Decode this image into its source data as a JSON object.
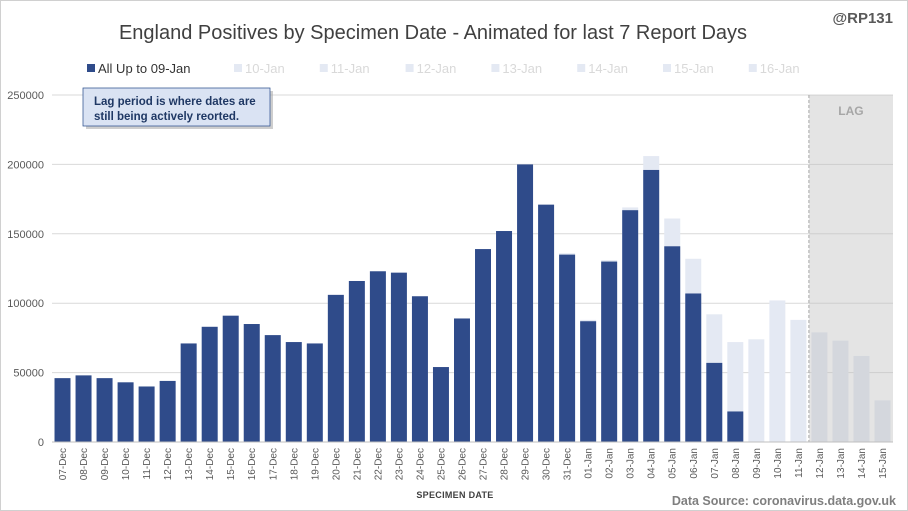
{
  "header": {
    "handle": "@RP131"
  },
  "legend": [
    {
      "label": "All Up to 09-Jan",
      "color": "#2F4B8A",
      "text_color": "#333333"
    },
    {
      "label": "10-Jan",
      "color": "#E4E9F3",
      "text_color": "#D9D9D9"
    },
    {
      "label": "11-Jan",
      "color": "#E4E9F3",
      "text_color": "#D9D9D9"
    },
    {
      "label": "12-Jan",
      "color": "#E4E9F3",
      "text_color": "#D9D9D9"
    },
    {
      "label": "13-Jan",
      "color": "#E4E9F3",
      "text_color": "#D9D9D9"
    },
    {
      "label": "14-Jan",
      "color": "#E4E9F3",
      "text_color": "#D9D9D9"
    },
    {
      "label": "15-Jan",
      "color": "#E4E9F3",
      "text_color": "#D9D9D9"
    },
    {
      "label": "16-Jan",
      "color": "#E4E9F3",
      "text_color": "#D9D9D9"
    }
  ],
  "annotation": {
    "lines": [
      "Lag period is where dates are",
      "still being actively reorted."
    ]
  },
  "footer": {
    "source": "Data Source: coronavirus.data.gov.uk"
  },
  "chart_data": {
    "type": "bar",
    "overlaid": true,
    "title": "England Positives by Specimen Date - Animated for last 7 Report Days",
    "xlabel": "SPECIMEN DATE",
    "ylim": [
      0,
      250000
    ],
    "yticks": [
      0,
      50000,
      100000,
      150000,
      200000,
      250000
    ],
    "grid": true,
    "legend_position": "top",
    "categories": [
      "07-Dec",
      "08-Dec",
      "09-Dec",
      "10-Dec",
      "11-Dec",
      "12-Dec",
      "13-Dec",
      "14-Dec",
      "15-Dec",
      "16-Dec",
      "17-Dec",
      "18-Dec",
      "19-Dec",
      "20-Dec",
      "21-Dec",
      "22-Dec",
      "23-Dec",
      "24-Dec",
      "25-Dec",
      "26-Dec",
      "27-Dec",
      "28-Dec",
      "29-Dec",
      "30-Dec",
      "31-Dec",
      "01-Jan",
      "02-Jan",
      "03-Jan",
      "04-Jan",
      "05-Jan",
      "06-Jan",
      "07-Jan",
      "08-Jan",
      "09-Jan",
      "10-Jan",
      "11-Jan",
      "12-Jan",
      "13-Jan",
      "14-Jan",
      "15-Jan"
    ],
    "series": [
      {
        "name": "16-Jan",
        "color": "#E4E9F3",
        "values": [
          46000,
          48000,
          46000,
          43000,
          40000,
          44000,
          71000,
          83000,
          91000,
          85000,
          77000,
          72000,
          71000,
          106000,
          116000,
          123000,
          122000,
          105000,
          54000,
          89000,
          139000,
          152000,
          200000,
          171000,
          136000,
          88000,
          131000,
          169000,
          206000,
          161000,
          132000,
          92000,
          72000,
          74000,
          102000,
          88000,
          79000,
          73000,
          62000,
          30000
        ]
      },
      {
        "name": "All Up to 09-Jan",
        "color": "#2F4B8A",
        "values": [
          46000,
          48000,
          46000,
          43000,
          40000,
          44000,
          71000,
          83000,
          91000,
          85000,
          77000,
          72000,
          71000,
          106000,
          116000,
          123000,
          122000,
          105000,
          54000,
          89000,
          139000,
          152000,
          200000,
          171000,
          135000,
          87000,
          130000,
          167000,
          196000,
          141000,
          107000,
          57000,
          22000,
          0,
          0,
          0,
          0,
          0,
          0,
          0
        ]
      }
    ],
    "lag": {
      "label": "LAG",
      "from": "12-Jan",
      "to": "15-Jan",
      "color": "#BFBFBF"
    }
  }
}
